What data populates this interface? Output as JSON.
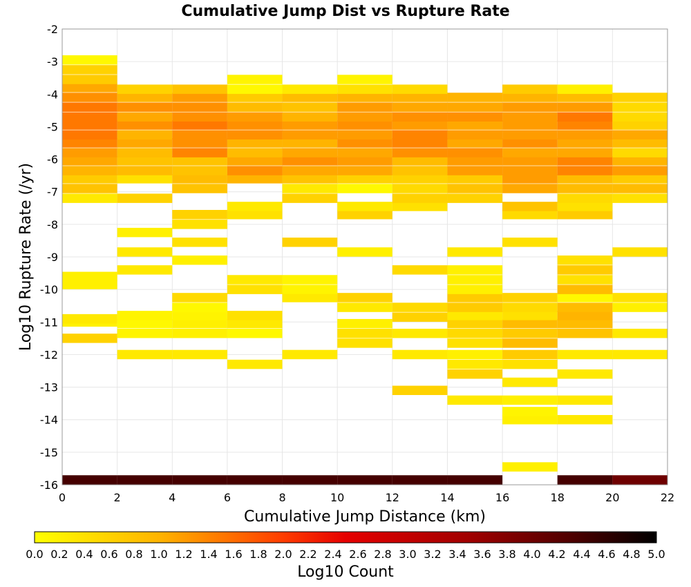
{
  "chart_data": {
    "type": "heatmap",
    "title": "Cumulative Jump Dist vs Rupture Rate",
    "xlabel": "Cumulative Jump Distance (km)",
    "ylabel": "Log10 Rupture Rate (/yr)",
    "xlim": [
      0,
      22
    ],
    "ylim": [
      -16,
      -2
    ],
    "xticks": [
      "0",
      "2",
      "4",
      "6",
      "8",
      "10",
      "12",
      "14",
      "16",
      "18",
      "20",
      "22"
    ],
    "yticks": [
      "-2",
      "-3",
      "-4",
      "-5",
      "-6",
      "-7",
      "-8",
      "-9",
      "-10",
      "-11",
      "-12",
      "-13",
      "-14",
      "-15",
      "-16"
    ],
    "x_bin_width": 2,
    "y_bin_height": 0.2857,
    "cell_value_units": "Log10 Count",
    "grid": true,
    "colorbar": {
      "label": "Log10 Count",
      "range": [
        0,
        5
      ],
      "ticks": [
        "0.0",
        "0.2",
        "0.4",
        "0.6",
        "0.8",
        "1.0",
        "1.2",
        "1.4",
        "1.6",
        "1.8",
        "2.0",
        "2.2",
        "2.4",
        "2.6",
        "2.8",
        "3.0",
        "3.2",
        "3.4",
        "3.6",
        "3.8",
        "4.0",
        "4.2",
        "4.4",
        "4.6",
        "4.8",
        "5.0"
      ],
      "stops": [
        {
          "value": 0.0,
          "color": "#ffff00"
        },
        {
          "value": 1.0,
          "color": "#ffb400"
        },
        {
          "value": 2.0,
          "color": "#ff3c00"
        },
        {
          "value": 2.5,
          "color": "#e60000"
        },
        {
          "value": 3.5,
          "color": "#a00000"
        },
        {
          "value": 4.3,
          "color": "#500000"
        },
        {
          "value": 5.0,
          "color": "#000000"
        }
      ]
    },
    "columns": [
      {
        "x0": 0,
        "rows": [
          [
            -15.85,
            4.4
          ],
          [
            -11.5,
            0.6
          ],
          [
            -11.0,
            0.2
          ],
          [
            -10.9,
            0.3
          ],
          [
            -9.85,
            0.2
          ],
          [
            -9.6,
            0.2
          ],
          [
            -7.2,
            0.3
          ],
          [
            -6.9,
            0.8
          ],
          [
            -6.6,
            0.7
          ],
          [
            -6.35,
            1.0
          ],
          [
            -6.05,
            1.1
          ],
          [
            -5.8,
            1.2
          ],
          [
            -5.5,
            1.4
          ],
          [
            -5.25,
            1.5
          ],
          [
            -4.95,
            1.5
          ],
          [
            -4.7,
            1.5
          ],
          [
            -4.4,
            1.5
          ],
          [
            -4.1,
            1.3
          ],
          [
            -3.8,
            1.1
          ],
          [
            -3.55,
            0.7
          ],
          [
            -3.25,
            0.6
          ],
          [
            -2.95,
            0.1
          ]
        ]
      },
      {
        "x0": 2,
        "rows": [
          [
            -15.85,
            4.4
          ],
          [
            -12.0,
            0.3
          ],
          [
            -11.35,
            0.15
          ],
          [
            -11.05,
            0.1
          ],
          [
            -10.8,
            0.15
          ],
          [
            -9.4,
            0.3
          ],
          [
            -8.85,
            0.3
          ],
          [
            -8.25,
            0.2
          ],
          [
            -7.2,
            0.6
          ],
          [
            -6.6,
            0.4
          ],
          [
            -6.35,
            0.9
          ],
          [
            -6.05,
            0.8
          ],
          [
            -5.8,
            0.9
          ],
          [
            -5.5,
            1.1
          ],
          [
            -5.25,
            1.0
          ],
          [
            -4.95,
            1.3
          ],
          [
            -4.7,
            1.1
          ],
          [
            -4.4,
            1.3
          ],
          [
            -4.1,
            1.0
          ],
          [
            -3.85,
            0.6
          ]
        ]
      },
      {
        "x0": 4,
        "rows": [
          [
            -15.85,
            4.4
          ],
          [
            -12.0,
            0.3
          ],
          [
            -11.35,
            0.2
          ],
          [
            -11.05,
            0.2
          ],
          [
            -10.8,
            0.15
          ],
          [
            -10.55,
            0.1
          ],
          [
            -10.25,
            0.5
          ],
          [
            -9.1,
            0.2
          ],
          [
            -8.55,
            0.4
          ],
          [
            -8.0,
            0.4
          ],
          [
            -7.7,
            0.6
          ],
          [
            -6.9,
            0.8
          ],
          [
            -6.6,
            0.9
          ],
          [
            -6.35,
            0.8
          ],
          [
            -6.05,
            0.8
          ],
          [
            -5.8,
            1.4
          ],
          [
            -5.5,
            1.3
          ],
          [
            -5.25,
            1.3
          ],
          [
            -4.95,
            1.5
          ],
          [
            -4.7,
            1.3
          ],
          [
            -4.4,
            1.3
          ],
          [
            -4.1,
            1.2
          ],
          [
            -3.85,
            0.8
          ]
        ]
      },
      {
        "x0": 6,
        "rows": [
          [
            -15.85,
            4.4
          ],
          [
            -12.3,
            0.3
          ],
          [
            -11.35,
            0.1
          ],
          [
            -11.05,
            0.3
          ],
          [
            -10.8,
            0.4
          ],
          [
            -10.0,
            0.4
          ],
          [
            -9.7,
            0.3
          ],
          [
            -7.7,
            0.4
          ],
          [
            -7.45,
            0.3
          ],
          [
            -6.6,
            1.0
          ],
          [
            -6.35,
            1.3
          ],
          [
            -6.05,
            1.1
          ],
          [
            -5.8,
            0.9
          ],
          [
            -5.5,
            1.0
          ],
          [
            -5.25,
            1.3
          ],
          [
            -4.95,
            1.3
          ],
          [
            -4.7,
            1.2
          ],
          [
            -4.4,
            0.9
          ],
          [
            -4.1,
            0.7
          ],
          [
            -3.85,
            0.1
          ],
          [
            -3.55,
            0.15
          ]
        ]
      },
      {
        "x0": 8,
        "rows": [
          [
            -15.85,
            4.4
          ],
          [
            -12.0,
            0.3
          ],
          [
            -10.25,
            0.3
          ],
          [
            -10.0,
            0.15
          ],
          [
            -9.7,
            0.15
          ],
          [
            -8.55,
            0.6
          ],
          [
            -7.2,
            0.6
          ],
          [
            -6.9,
            0.3
          ],
          [
            -6.6,
            0.8
          ],
          [
            -6.35,
            1.1
          ],
          [
            -6.05,
            1.3
          ],
          [
            -5.8,
            1.1
          ],
          [
            -5.5,
            1.0
          ],
          [
            -5.25,
            1.2
          ],
          [
            -4.95,
            1.2
          ],
          [
            -4.7,
            1.0
          ],
          [
            -4.4,
            0.8
          ],
          [
            -4.1,
            0.9
          ],
          [
            -3.85,
            0.3
          ]
        ]
      },
      {
        "x0": 10,
        "rows": [
          [
            -15.85,
            4.4
          ],
          [
            -11.65,
            0.4
          ],
          [
            -11.35,
            0.4
          ],
          [
            -11.05,
            0.2
          ],
          [
            -10.55,
            0.3
          ],
          [
            -10.25,
            0.6
          ],
          [
            -8.85,
            0.2
          ],
          [
            -7.7,
            0.6
          ],
          [
            -7.45,
            0.3
          ],
          [
            -6.9,
            0.1
          ],
          [
            -6.6,
            0.6
          ],
          [
            -6.35,
            1.1
          ],
          [
            -6.05,
            1.2
          ],
          [
            -5.8,
            1.1
          ],
          [
            -5.5,
            1.3
          ],
          [
            -5.25,
            1.2
          ],
          [
            -4.95,
            1.3
          ],
          [
            -4.7,
            1.2
          ],
          [
            -4.4,
            1.2
          ],
          [
            -4.1,
            1.0
          ],
          [
            -3.85,
            0.4
          ],
          [
            -3.55,
            0.15
          ]
        ]
      },
      {
        "x0": 12,
        "rows": [
          [
            -15.85,
            4.4
          ],
          [
            -13.1,
            0.6
          ],
          [
            -12.0,
            0.3
          ],
          [
            -11.35,
            0.3
          ],
          [
            -10.85,
            0.6
          ],
          [
            -10.55,
            0.5
          ],
          [
            -9.4,
            0.5
          ],
          [
            -7.45,
            0.4
          ],
          [
            -7.2,
            0.6
          ],
          [
            -6.9,
            0.5
          ],
          [
            -6.6,
            0.6
          ],
          [
            -6.35,
            0.8
          ],
          [
            -6.05,
            0.9
          ],
          [
            -5.8,
            1.3
          ],
          [
            -5.5,
            1.4
          ],
          [
            -5.25,
            1.4
          ],
          [
            -4.95,
            1.2
          ],
          [
            -4.7,
            1.3
          ],
          [
            -4.4,
            1.1
          ],
          [
            -4.1,
            1.0
          ],
          [
            -3.85,
            0.5
          ]
        ]
      },
      {
        "x0": 14,
        "rows": [
          [
            -15.85,
            4.4
          ],
          [
            -13.4,
            0.3
          ],
          [
            -12.6,
            0.6
          ],
          [
            -12.3,
            0.3
          ],
          [
            -12.0,
            0.2
          ],
          [
            -11.65,
            0.4
          ],
          [
            -11.35,
            0.5
          ],
          [
            -11.05,
            0.6
          ],
          [
            -10.8,
            0.3
          ],
          [
            -10.55,
            0.7
          ],
          [
            -10.25,
            0.7
          ],
          [
            -10.0,
            0.2
          ],
          [
            -9.7,
            0.2
          ],
          [
            -9.4,
            0.2
          ],
          [
            -8.85,
            0.3
          ],
          [
            -7.2,
            0.6
          ],
          [
            -6.9,
            0.8
          ],
          [
            -6.6,
            0.7
          ],
          [
            -6.35,
            1.2
          ],
          [
            -6.05,
            1.2
          ],
          [
            -5.8,
            1.3
          ],
          [
            -5.5,
            1.1
          ],
          [
            -5.25,
            1.2
          ],
          [
            -4.95,
            1.1
          ],
          [
            -4.7,
            1.3
          ],
          [
            -4.4,
            1.1
          ],
          [
            -4.1,
            1.0
          ]
        ]
      },
      {
        "x0": 16,
        "rows": [
          [
            -15.45,
            0.2
          ],
          [
            -14.0,
            0.2
          ],
          [
            -13.75,
            0.15
          ],
          [
            -13.4,
            0.2
          ],
          [
            -12.85,
            0.3
          ],
          [
            -12.3,
            0.4
          ],
          [
            -12.0,
            0.7
          ],
          [
            -11.65,
            0.9
          ],
          [
            -11.35,
            0.7
          ],
          [
            -11.05,
            0.9
          ],
          [
            -10.8,
            0.4
          ],
          [
            -10.55,
            0.5
          ],
          [
            -10.25,
            0.6
          ],
          [
            -8.55,
            0.4
          ],
          [
            -7.7,
            0.5
          ],
          [
            -7.45,
            0.8
          ],
          [
            -6.9,
            1.1
          ],
          [
            -6.6,
            1.2
          ],
          [
            -6.35,
            1.2
          ],
          [
            -6.05,
            1.2
          ],
          [
            -5.8,
            1.1
          ],
          [
            -5.5,
            1.3
          ],
          [
            -5.25,
            1.2
          ],
          [
            -4.95,
            1.2
          ],
          [
            -4.7,
            1.2
          ],
          [
            -4.4,
            1.2
          ],
          [
            -4.1,
            1.0
          ],
          [
            -3.85,
            0.7
          ]
        ]
      },
      {
        "x0": 18,
        "rows": [
          [
            -15.85,
            4.4
          ],
          [
            -14.0,
            0.3
          ],
          [
            -13.4,
            0.3
          ],
          [
            -12.6,
            0.3
          ],
          [
            -12.0,
            0.3
          ],
          [
            -11.35,
            0.8
          ],
          [
            -11.05,
            0.9
          ],
          [
            -10.8,
            1.0
          ],
          [
            -10.55,
            0.9
          ],
          [
            -10.25,
            0.1
          ],
          [
            -10.0,
            0.9
          ],
          [
            -9.7,
            0.4
          ],
          [
            -9.4,
            0.7
          ],
          [
            -9.1,
            0.4
          ],
          [
            -7.7,
            0.7
          ],
          [
            -7.45,
            0.4
          ],
          [
            -7.2,
            0.5
          ],
          [
            -6.9,
            0.9
          ],
          [
            -6.6,
            0.9
          ],
          [
            -6.35,
            1.4
          ],
          [
            -6.05,
            1.4
          ],
          [
            -5.8,
            1.1
          ],
          [
            -5.5,
            1.1
          ],
          [
            -5.25,
            1.2
          ],
          [
            -4.95,
            1.4
          ],
          [
            -4.7,
            1.5
          ],
          [
            -4.4,
            1.2
          ],
          [
            -4.1,
            0.9
          ],
          [
            -3.85,
            0.2
          ]
        ]
      },
      {
        "x0": 20,
        "rows": [
          [
            -15.85,
            4.0
          ],
          [
            -12.0,
            0.3
          ],
          [
            -11.35,
            0.3
          ],
          [
            -10.55,
            0.2
          ],
          [
            -10.25,
            0.4
          ],
          [
            -8.85,
            0.4
          ],
          [
            -7.2,
            0.4
          ],
          [
            -6.9,
            0.9
          ],
          [
            -6.6,
            0.7
          ],
          [
            -6.35,
            1.2
          ],
          [
            -6.05,
            1.0
          ],
          [
            -5.8,
            0.5
          ],
          [
            -5.5,
            0.9
          ],
          [
            -5.25,
            1.1
          ],
          [
            -4.95,
            0.6
          ],
          [
            -4.7,
            0.5
          ],
          [
            -4.4,
            0.5
          ],
          [
            -4.1,
            0.6
          ]
        ]
      }
    ]
  }
}
